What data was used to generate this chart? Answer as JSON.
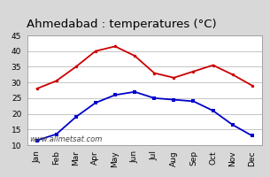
{
  "title": "Ahmedabad : temperatures (°C)",
  "months": [
    "Jan",
    "Feb",
    "Mar",
    "Apr",
    "May",
    "Jun",
    "Jul",
    "Aug",
    "Sep",
    "Oct",
    "Nov",
    "Dec"
  ],
  "max_temps": [
    28,
    30.5,
    35,
    40,
    41.5,
    38.5,
    33,
    31.5,
    33.5,
    35.5,
    32.5,
    29
  ],
  "min_temps": [
    11.5,
    13.5,
    19,
    23.5,
    26,
    27,
    25,
    24.5,
    24,
    21,
    16.5,
    13
  ],
  "max_color": "#cc0000",
  "min_color": "#0000cc",
  "ylim": [
    10,
    45
  ],
  "yticks": [
    10,
    15,
    20,
    25,
    30,
    35,
    40,
    45
  ],
  "background_color": "#d8d8d8",
  "plot_bg_color": "#ffffff",
  "grid_color": "#bbbbbb",
  "watermark": "www.allmetsat.com",
  "title_fontsize": 9.5,
  "tick_fontsize": 6.5,
  "watermark_fontsize": 6.0
}
